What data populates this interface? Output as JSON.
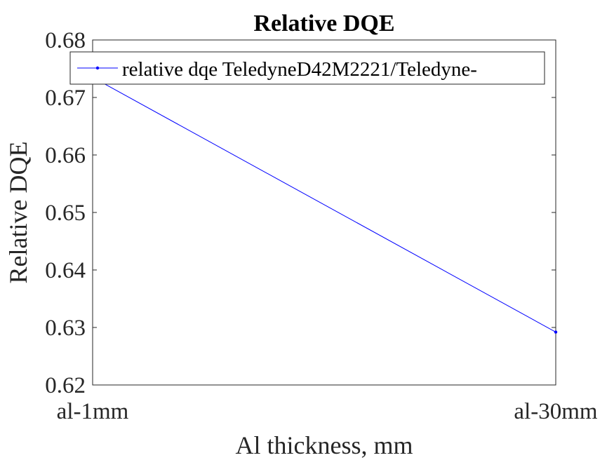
{
  "chart_data": {
    "type": "line",
    "title": "Relative DQE",
    "xlabel": "Al thickness, mm",
    "ylabel": "Relative DQE",
    "categories": [
      "al-1mm",
      "al-30mm"
    ],
    "series": [
      {
        "name": "relative dqe TeledyneD42M2221/Teledyne-",
        "values": [
          0.6735,
          0.6292
        ],
        "color": "#0000ff"
      }
    ],
    "ylim": [
      0.62,
      0.68
    ],
    "yticks": [
      0.62,
      0.63,
      0.64,
      0.65,
      0.66,
      0.67,
      0.68
    ],
    "ytick_labels": [
      "0.62",
      "0.63",
      "0.64",
      "0.65",
      "0.66",
      "0.67",
      "0.68"
    ],
    "grid": false,
    "legend_position": "top"
  }
}
